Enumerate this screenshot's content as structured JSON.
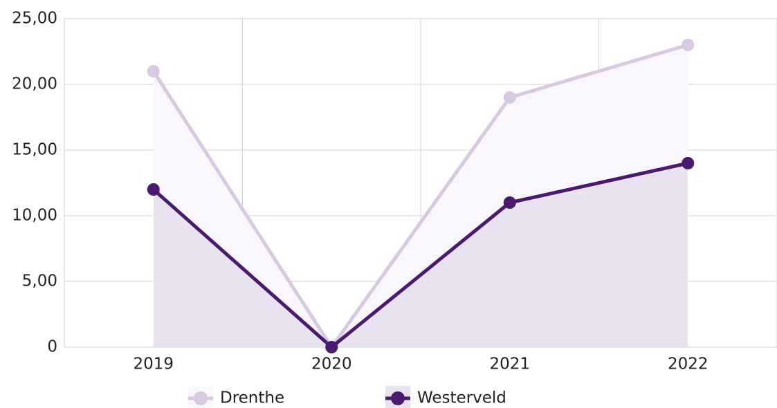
{
  "chart_data": {
    "type": "line",
    "categories": [
      "2019",
      "2020",
      "2021",
      "2022"
    ],
    "series": [
      {
        "name": "Drenthe",
        "color": "#d8c8e2",
        "area_color": "#f9f7fb",
        "values": [
          21,
          0,
          19,
          23
        ]
      },
      {
        "name": "Westerveld",
        "color": "#4a1a6c",
        "area_color": "#e9e2f0",
        "values": [
          12,
          0,
          11,
          14
        ]
      }
    ],
    "ylim": [
      0,
      25
    ],
    "yticks": [
      0,
      {
        "value": 5,
        "label": "5,00"
      },
      {
        "value": 10,
        "label": "10,00"
      },
      {
        "value": 15,
        "label": "15,00"
      },
      {
        "value": 20,
        "label": "20,00"
      },
      {
        "value": 25,
        "label": "25,00"
      }
    ],
    "grid": true,
    "area": true,
    "legend": "bottom"
  }
}
